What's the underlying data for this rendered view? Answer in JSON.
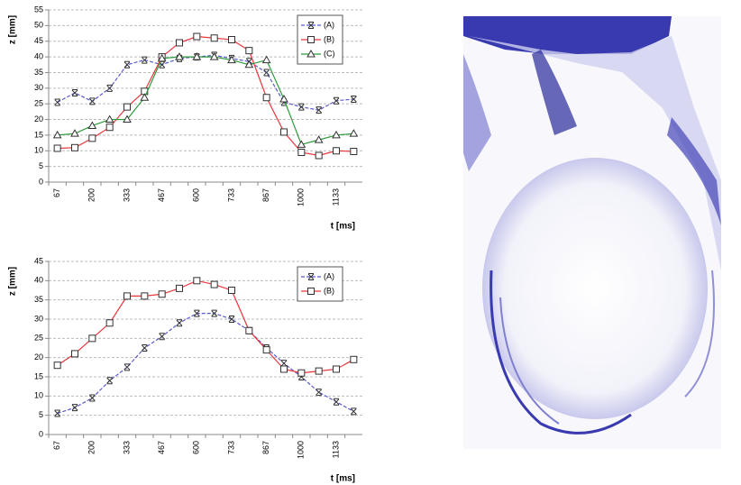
{
  "chart_data": [
    {
      "type": "line",
      "y_label": "z [mm]",
      "x_label": "t [ms]",
      "categories": [
        "67",
        null,
        "200",
        null,
        "333",
        null,
        "467",
        null,
        "600",
        null,
        "733",
        null,
        "867",
        null,
        "1000",
        null,
        "1133",
        null
      ],
      "ylim": [
        0,
        55
      ],
      "yticks": [
        0,
        5,
        10,
        15,
        20,
        25,
        30,
        35,
        40,
        45,
        50,
        55
      ],
      "grid": true,
      "legend": "top-right",
      "series": [
        {
          "name": "(A)",
          "color": "#5a5acd",
          "marker": "x",
          "dashed": true,
          "values": [
            25.5,
            28.5,
            25.8,
            30,
            37.5,
            39,
            37.5,
            39.5,
            40,
            40.5,
            39.5,
            38.5,
            35,
            25.5,
            24,
            23,
            26,
            26.5
          ]
        },
        {
          "name": "(B)",
          "color": "#e8363c",
          "marker": "square",
          "dashed": false,
          "values": [
            10.8,
            11,
            14,
            17.5,
            24,
            29,
            40,
            44.5,
            46.5,
            46,
            45.5,
            42,
            27,
            16,
            9.5,
            8.5,
            10,
            9.8
          ]
        },
        {
          "name": "(C)",
          "color": "#2e9a3a",
          "marker": "triangle",
          "dashed": false,
          "values": [
            15,
            15.5,
            18,
            20,
            20,
            27,
            39.5,
            40,
            40,
            40,
            39,
            37.5,
            39,
            26.5,
            12,
            13.5,
            15,
            15.5
          ]
        }
      ]
    },
    {
      "type": "line",
      "y_label": "z [mm]",
      "x_label": "t [ms]",
      "categories": [
        "67",
        null,
        "200",
        null,
        "333",
        null,
        "467",
        null,
        "600",
        null,
        "733",
        null,
        "867",
        null,
        "1000",
        null,
        "1133",
        null
      ],
      "ylim": [
        0,
        45
      ],
      "yticks": [
        0,
        5,
        10,
        15,
        20,
        25,
        30,
        35,
        40,
        45
      ],
      "grid": true,
      "legend": "top-right",
      "series": [
        {
          "name": "(A)",
          "color": "#5a5acd",
          "marker": "x",
          "dashed": true,
          "values": [
            5.5,
            7,
            9.5,
            14,
            17.5,
            22.5,
            25.5,
            29,
            31.5,
            31.5,
            30,
            27,
            22.5,
            18.5,
            15,
            11,
            8.5,
            6
          ]
        },
        {
          "name": "(B)",
          "color": "#e8363c",
          "marker": "square",
          "dashed": false,
          "values": [
            18,
            21,
            25,
            29,
            36,
            36,
            36.5,
            38,
            40,
            39,
            37.5,
            27,
            22,
            17,
            16,
            16.5,
            17,
            19.5
          ]
        }
      ]
    }
  ]
}
